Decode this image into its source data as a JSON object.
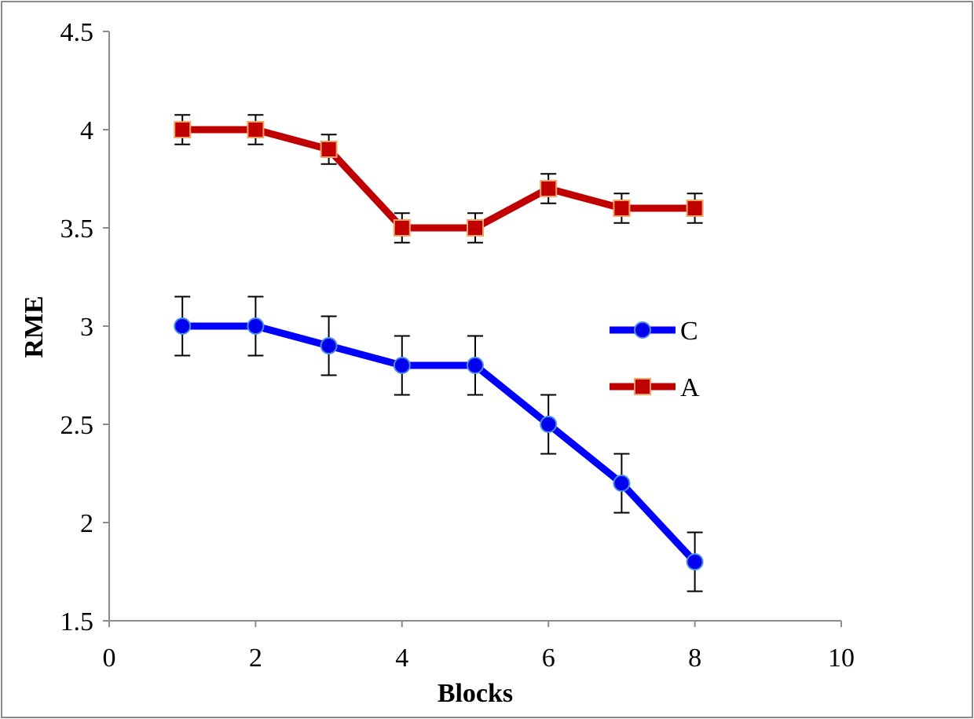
{
  "chart_data": {
    "type": "line",
    "title": "",
    "xlabel": "Blocks",
    "ylabel": "RME",
    "xlim": [
      0,
      10
    ],
    "ylim": [
      1.5,
      4.5
    ],
    "x_ticks": [
      "0",
      "2",
      "4",
      "6",
      "8",
      "10"
    ],
    "y_ticks": [
      "1.5",
      "2",
      "2.5",
      "3",
      "3.5",
      "4",
      "4.5"
    ],
    "legend_position": "center-right",
    "series": [
      {
        "name": "C",
        "marker": "circle",
        "color": "#0000ff",
        "marker_fill": "#0000ee",
        "marker_edge": "#4a90e2",
        "x": [
          1,
          2,
          3,
          4,
          5,
          6,
          7,
          8
        ],
        "y": [
          3.0,
          3.0,
          2.9,
          2.8,
          2.8,
          2.5,
          2.2,
          1.8
        ],
        "error": [
          0.15,
          0.15,
          0.15,
          0.15,
          0.15,
          0.15,
          0.15,
          0.15
        ]
      },
      {
        "name": "A",
        "marker": "square",
        "color": "#c00000",
        "marker_fill": "#c00000",
        "marker_edge": "#f4a460",
        "x": [
          1,
          2,
          3,
          4,
          5,
          6,
          7,
          8
        ],
        "y": [
          4.0,
          4.0,
          3.9,
          3.5,
          3.5,
          3.7,
          3.6,
          3.6
        ],
        "error": [
          0.075,
          0.075,
          0.075,
          0.075,
          0.075,
          0.075,
          0.075,
          0.075
        ]
      }
    ]
  }
}
